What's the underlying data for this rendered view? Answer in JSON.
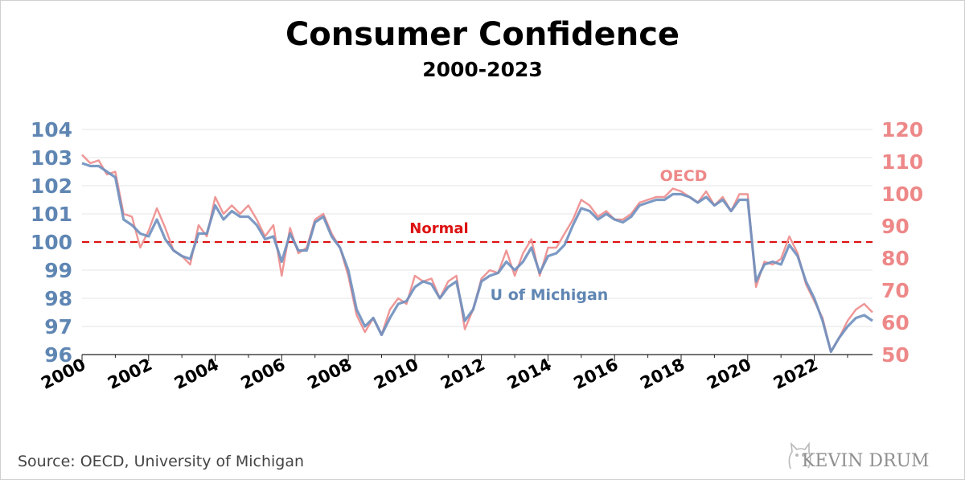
{
  "header": {
    "title": "Consumer Confidence",
    "subtitle": "2000-2023"
  },
  "footer": {
    "source": "Source: OECD, University of Michigan",
    "brand": "KEVIN DRUM"
  },
  "chart_data": {
    "type": "line",
    "title": "Consumer Confidence",
    "subtitle": "2000-2023",
    "x_label": "",
    "x_ticks": [
      "2000",
      "2002",
      "2004",
      "2006",
      "2008",
      "2010",
      "2012",
      "2014",
      "2016",
      "2018",
      "2020",
      "2022"
    ],
    "xlim": [
      2000,
      2023.75
    ],
    "left_axis": {
      "ticks": [
        96,
        97,
        98,
        99,
        100,
        101,
        102,
        103,
        104
      ],
      "ylim": [
        96,
        104
      ],
      "color": "#5f86b3"
    },
    "right_axis": {
      "ticks": [
        50,
        60,
        70,
        80,
        90,
        100,
        110,
        120
      ],
      "ylim": [
        50,
        120
      ],
      "color": "#ee8888"
    },
    "grid": true,
    "reference_line": {
      "label": "Normal",
      "value": 100,
      "axis": "left",
      "color": "#dd1111",
      "style": "dashed"
    },
    "series": [
      {
        "name": "OECD",
        "axis": "left",
        "color": "#ee9090",
        "x": [
          2000.0,
          2000.25,
          2000.5,
          2000.75,
          2001.0,
          2001.25,
          2001.5,
          2001.75,
          2002.0,
          2002.25,
          2002.5,
          2002.75,
          2003.0,
          2003.25,
          2003.5,
          2003.75,
          2004.0,
          2004.25,
          2004.5,
          2004.75,
          2005.0,
          2005.25,
          2005.5,
          2005.75,
          2006.0,
          2006.25,
          2006.5,
          2006.75,
          2007.0,
          2007.25,
          2007.5,
          2007.75,
          2008.0,
          2008.25,
          2008.5,
          2008.75,
          2009.0,
          2009.25,
          2009.5,
          2009.75,
          2010.0,
          2010.25,
          2010.5,
          2010.75,
          2011.0,
          2011.25,
          2011.5,
          2011.75,
          2012.0,
          2012.25,
          2012.5,
          2012.75,
          2013.0,
          2013.25,
          2013.5,
          2013.75,
          2014.0,
          2014.25,
          2014.5,
          2014.75,
          2015.0,
          2015.25,
          2015.5,
          2015.75,
          2016.0,
          2016.25,
          2016.5,
          2016.75,
          2017.0,
          2017.25,
          2017.5,
          2017.75,
          2018.0,
          2018.25,
          2018.5,
          2018.75,
          2019.0,
          2019.25,
          2019.5,
          2019.75,
          2020.0,
          2020.25,
          2020.5,
          2020.75,
          2021.0,
          2021.25,
          2021.5,
          2021.75,
          2022.0,
          2022.25,
          2022.5,
          2022.75,
          2023.0,
          2023.25,
          2023.5,
          2023.75
        ],
        "values": [
          103.1,
          102.8,
          102.9,
          102.4,
          102.5,
          101.0,
          100.9,
          99.8,
          100.4,
          101.2,
          100.5,
          99.7,
          99.5,
          99.2,
          100.6,
          100.2,
          101.6,
          101.0,
          101.3,
          101.0,
          101.3,
          100.8,
          100.2,
          100.6,
          98.8,
          100.5,
          99.6,
          99.8,
          100.8,
          101.0,
          100.3,
          99.8,
          98.8,
          97.4,
          96.8,
          97.3,
          96.7,
          97.6,
          98.0,
          97.8,
          98.8,
          98.6,
          98.7,
          98.0,
          98.6,
          98.8,
          96.9,
          97.6,
          98.7,
          99.0,
          98.9,
          99.7,
          98.8,
          99.6,
          100.1,
          98.8,
          99.8,
          99.8,
          100.3,
          100.8,
          101.5,
          101.3,
          100.9,
          101.1,
          100.8,
          100.8,
          101.0,
          101.4,
          101.5,
          101.6,
          101.6,
          101.9,
          101.8,
          101.6,
          101.4,
          101.8,
          101.3,
          101.6,
          101.1,
          101.7,
          101.7,
          98.4,
          99.3,
          99.2,
          99.4,
          100.2,
          99.6,
          98.5,
          97.9,
          97.3,
          96.1,
          96.6,
          97.2,
          97.6,
          97.8,
          97.5
        ]
      },
      {
        "name": "U of Michigan",
        "axis": "left",
        "color": "#6e8fbe",
        "x": [
          2000.0,
          2000.25,
          2000.5,
          2000.75,
          2001.0,
          2001.25,
          2001.5,
          2001.75,
          2002.0,
          2002.25,
          2002.5,
          2002.75,
          2003.0,
          2003.25,
          2003.5,
          2003.75,
          2004.0,
          2004.25,
          2004.5,
          2004.75,
          2005.0,
          2005.25,
          2005.5,
          2005.75,
          2006.0,
          2006.25,
          2006.5,
          2006.75,
          2007.0,
          2007.25,
          2007.5,
          2007.75,
          2008.0,
          2008.25,
          2008.5,
          2008.75,
          2009.0,
          2009.25,
          2009.5,
          2009.75,
          2010.0,
          2010.25,
          2010.5,
          2010.75,
          2011.0,
          2011.25,
          2011.5,
          2011.75,
          2012.0,
          2012.25,
          2012.5,
          2012.75,
          2013.0,
          2013.25,
          2013.5,
          2013.75,
          2014.0,
          2014.25,
          2014.5,
          2014.75,
          2015.0,
          2015.25,
          2015.5,
          2015.75,
          2016.0,
          2016.25,
          2016.5,
          2016.75,
          2017.0,
          2017.25,
          2017.5,
          2017.75,
          2018.0,
          2018.25,
          2018.5,
          2018.75,
          2019.0,
          2019.25,
          2019.5,
          2019.75,
          2020.0,
          2020.25,
          2020.5,
          2020.75,
          2021.0,
          2021.25,
          2021.5,
          2021.75,
          2022.0,
          2022.25,
          2022.5,
          2022.75,
          2023.0,
          2023.25,
          2023.5,
          2023.75
        ],
        "values": [
          102.8,
          102.7,
          102.7,
          102.5,
          102.3,
          100.8,
          100.6,
          100.3,
          100.2,
          100.8,
          100.1,
          99.7,
          99.5,
          99.4,
          100.3,
          100.3,
          101.3,
          100.8,
          101.1,
          100.9,
          100.9,
          100.6,
          100.1,
          100.2,
          99.3,
          100.3,
          99.7,
          99.7,
          100.7,
          100.9,
          100.2,
          99.8,
          99.0,
          97.6,
          97.0,
          97.3,
          96.7,
          97.3,
          97.8,
          97.9,
          98.4,
          98.6,
          98.5,
          98.0,
          98.4,
          98.6,
          97.2,
          97.6,
          98.6,
          98.8,
          98.9,
          99.3,
          99.0,
          99.3,
          99.8,
          98.9,
          99.5,
          99.6,
          99.9,
          100.6,
          101.2,
          101.1,
          100.8,
          101.0,
          100.8,
          100.7,
          100.9,
          101.3,
          101.4,
          101.5,
          101.5,
          101.7,
          101.7,
          101.6,
          101.4,
          101.6,
          101.3,
          101.5,
          101.1,
          101.5,
          101.5,
          98.6,
          99.2,
          99.3,
          99.2,
          99.9,
          99.5,
          98.6,
          98.0,
          97.2,
          96.1,
          96.6,
          97.0,
          97.3,
          97.4,
          97.2
        ]
      }
    ],
    "annotations": [
      {
        "text": "OECD",
        "color": "#ee8888"
      },
      {
        "text": "U of Michigan",
        "color": "#5f86b3"
      },
      {
        "text": "Normal",
        "color": "#dd1111"
      }
    ]
  }
}
